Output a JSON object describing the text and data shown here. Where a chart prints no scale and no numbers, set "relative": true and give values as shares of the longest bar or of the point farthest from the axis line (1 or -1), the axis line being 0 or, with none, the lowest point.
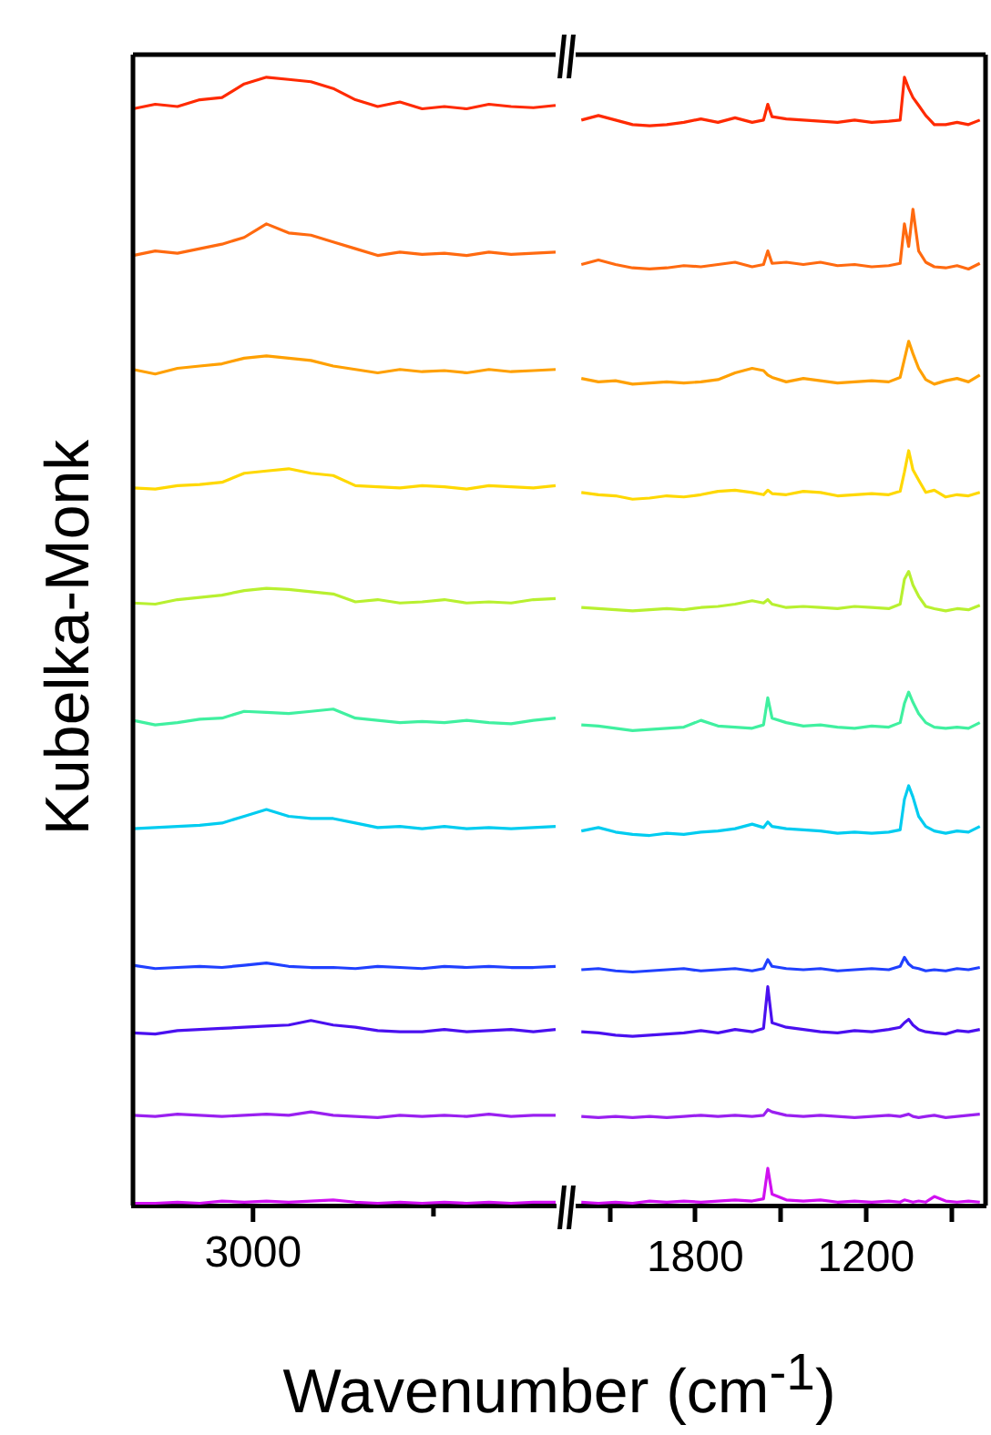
{
  "chart_data": [
    {
      "type": "line",
      "relative": true,
      "ylabel": "Kubelka-Monk",
      "tick_labels": false,
      "annotations": [
        "3000"
      ],
      "categories": [
        null,
        null,
        null,
        null,
        null,
        null,
        null,
        null,
        null,
        null,
        null,
        null,
        null,
        null,
        null,
        null,
        null,
        null,
        null,
        null
      ],
      "series": [
        {
          "color": "#ff2a00",
          "values": [
            0.972,
            0.976,
            0.974,
            0.98,
            0.982,
            0.994,
            1.0,
            0.998,
            0.996,
            0.99,
            0.98,
            0.974,
            0.978,
            0.972,
            0.974,
            0.972,
            0.976,
            0.974,
            0.973,
            0.975
          ]
        },
        {
          "color": "#ff6a10",
          "values": [
            0.842,
            0.846,
            0.844,
            0.848,
            0.852,
            0.858,
            0.87,
            0.862,
            0.86,
            0.854,
            0.848,
            0.842,
            0.845,
            0.843,
            0.844,
            0.842,
            0.845,
            0.843,
            0.844,
            0.845
          ]
        },
        {
          "color": "#ffa000",
          "values": [
            0.741,
            0.737,
            0.742,
            0.744,
            0.746,
            0.751,
            0.753,
            0.751,
            0.749,
            0.744,
            0.741,
            0.738,
            0.741,
            0.739,
            0.74,
            0.738,
            0.741,
            0.739,
            0.74,
            0.741
          ]
        },
        {
          "color": "#ffd800",
          "values": [
            0.636,
            0.635,
            0.638,
            0.639,
            0.641,
            0.649,
            0.651,
            0.653,
            0.649,
            0.647,
            0.638,
            0.637,
            0.636,
            0.638,
            0.637,
            0.635,
            0.638,
            0.637,
            0.636,
            0.638
          ]
        },
        {
          "color": "#b8f030",
          "values": [
            0.534,
            0.533,
            0.537,
            0.539,
            0.541,
            0.545,
            0.547,
            0.546,
            0.544,
            0.542,
            0.535,
            0.537,
            0.534,
            0.535,
            0.537,
            0.534,
            0.535,
            0.534,
            0.537,
            0.538
          ]
        },
        {
          "color": "#40f0a0",
          "values": [
            0.43,
            0.426,
            0.428,
            0.431,
            0.432,
            0.438,
            0.437,
            0.436,
            0.438,
            0.44,
            0.432,
            0.43,
            0.428,
            0.429,
            0.428,
            0.43,
            0.428,
            0.427,
            0.43,
            0.432
          ]
        },
        {
          "color": "#00ccf0",
          "values": [
            0.334,
            0.335,
            0.336,
            0.337,
            0.339,
            0.345,
            0.351,
            0.345,
            0.343,
            0.343,
            0.339,
            0.335,
            0.336,
            0.334,
            0.336,
            0.334,
            0.335,
            0.334,
            0.335,
            0.336
          ]
        },
        {
          "color": "#2040ff",
          "values": [
            0.213,
            0.21,
            0.211,
            0.212,
            0.211,
            0.213,
            0.215,
            0.212,
            0.211,
            0.211,
            0.21,
            0.212,
            0.211,
            0.21,
            0.212,
            0.211,
            0.212,
            0.211,
            0.211,
            0.212
          ]
        },
        {
          "color": "#4a10f0",
          "values": [
            0.153,
            0.152,
            0.155,
            0.156,
            0.157,
            0.158,
            0.159,
            0.16,
            0.164,
            0.16,
            0.158,
            0.155,
            0.154,
            0.154,
            0.156,
            0.154,
            0.155,
            0.156,
            0.154,
            0.156
          ]
        },
        {
          "color": "#9a20f0",
          "values": [
            0.08,
            0.079,
            0.081,
            0.08,
            0.079,
            0.08,
            0.081,
            0.08,
            0.083,
            0.08,
            0.079,
            0.078,
            0.08,
            0.079,
            0.08,
            0.079,
            0.081,
            0.079,
            0.08,
            0.08
          ]
        },
        {
          "color": "#d010f0",
          "values": [
            0.002,
            0.002,
            0.003,
            0.002,
            0.004,
            0.003,
            0.004,
            0.003,
            0.004,
            0.005,
            0.003,
            0.002,
            0.003,
            0.002,
            0.003,
            0.002,
            0.003,
            0.002,
            0.003,
            0.003
          ]
        }
      ]
    },
    {
      "type": "line",
      "relative": true,
      "xlabel": "Wavenumber (cm$^{-1}$)",
      "tick_labels": "x",
      "xlim": [
        2220,
        780
      ],
      "xticks": [
        {
          "value": 2100,
          "label": null
        },
        1800,
        {
          "value": 1500,
          "label": null
        },
        1200,
        {
          "value": 900,
          "label": null
        }
      ],
      "x": [
        2200,
        2140,
        2080,
        2020,
        1960,
        1900,
        1840,
        1780,
        1720,
        1660,
        1600,
        1560,
        1545,
        1530,
        1480,
        1420,
        1360,
        1300,
        1240,
        1180,
        1120,
        1080,
        1065,
        1050,
        1035,
        1015,
        990,
        960,
        920,
        880,
        840,
        800
      ],
      "series": [
        {
          "color": "#ff2a00",
          "values": [
            0.962,
            0.966,
            0.962,
            0.958,
            0.957,
            0.958,
            0.96,
            0.963,
            0.96,
            0.964,
            0.96,
            0.962,
            0.976,
            0.965,
            0.963,
            0.962,
            0.961,
            0.96,
            0.962,
            0.96,
            0.961,
            0.962,
            1.0,
            0.99,
            0.982,
            0.975,
            0.966,
            0.958,
            0.958,
            0.96,
            0.958,
            0.962
          ]
        },
        {
          "color": "#ff6a10",
          "values": [
            0.834,
            0.838,
            0.834,
            0.831,
            0.83,
            0.831,
            0.833,
            0.832,
            0.834,
            0.836,
            0.832,
            0.834,
            0.846,
            0.835,
            0.836,
            0.834,
            0.836,
            0.833,
            0.834,
            0.832,
            0.833,
            0.835,
            0.87,
            0.85,
            0.883,
            0.846,
            0.836,
            0.832,
            0.831,
            0.833,
            0.83,
            0.835
          ]
        },
        {
          "color": "#ffa000",
          "values": [
            0.733,
            0.73,
            0.731,
            0.728,
            0.729,
            0.73,
            0.729,
            0.73,
            0.732,
            0.738,
            0.742,
            0.74,
            0.736,
            0.734,
            0.73,
            0.733,
            0.731,
            0.729,
            0.73,
            0.731,
            0.73,
            0.734,
            0.75,
            0.766,
            0.755,
            0.742,
            0.732,
            0.728,
            0.731,
            0.733,
            0.73,
            0.736
          ]
        },
        {
          "color": "#ffd800",
          "values": [
            0.632,
            0.63,
            0.629,
            0.626,
            0.627,
            0.629,
            0.628,
            0.63,
            0.633,
            0.634,
            0.632,
            0.63,
            0.634,
            0.631,
            0.63,
            0.633,
            0.632,
            0.629,
            0.63,
            0.631,
            0.63,
            0.633,
            0.65,
            0.669,
            0.652,
            0.643,
            0.632,
            0.634,
            0.628,
            0.63,
            0.629,
            0.632
          ]
        },
        {
          "color": "#b8f030",
          "values": [
            0.53,
            0.529,
            0.528,
            0.527,
            0.528,
            0.529,
            0.528,
            0.53,
            0.531,
            0.533,
            0.536,
            0.534,
            0.537,
            0.533,
            0.53,
            0.531,
            0.53,
            0.529,
            0.531,
            0.53,
            0.529,
            0.533,
            0.555,
            0.562,
            0.55,
            0.54,
            0.531,
            0.529,
            0.527,
            0.529,
            0.528,
            0.532
          ]
        },
        {
          "color": "#40f0a0",
          "values": [
            0.426,
            0.425,
            0.423,
            0.421,
            0.422,
            0.423,
            0.424,
            0.43,
            0.425,
            0.424,
            0.423,
            0.426,
            0.45,
            0.432,
            0.428,
            0.425,
            0.426,
            0.424,
            0.423,
            0.425,
            0.424,
            0.428,
            0.445,
            0.455,
            0.446,
            0.436,
            0.428,
            0.424,
            0.423,
            0.424,
            0.423,
            0.428
          ]
        },
        {
          "color": "#00ccf0",
          "values": [
            0.332,
            0.335,
            0.331,
            0.329,
            0.328,
            0.33,
            0.329,
            0.331,
            0.332,
            0.334,
            0.338,
            0.335,
            0.34,
            0.336,
            0.334,
            0.333,
            0.332,
            0.33,
            0.331,
            0.33,
            0.331,
            0.333,
            0.36,
            0.372,
            0.362,
            0.345,
            0.336,
            0.332,
            0.33,
            0.332,
            0.331,
            0.336
          ]
        },
        {
          "color": "#2040ff",
          "values": [
            0.209,
            0.21,
            0.208,
            0.207,
            0.208,
            0.209,
            0.21,
            0.208,
            0.209,
            0.21,
            0.208,
            0.21,
            0.218,
            0.212,
            0.21,
            0.209,
            0.21,
            0.208,
            0.209,
            0.21,
            0.209,
            0.212,
            0.22,
            0.214,
            0.211,
            0.21,
            0.208,
            0.209,
            0.208,
            0.21,
            0.209,
            0.211
          ]
        },
        {
          "color": "#4a10f0",
          "values": [
            0.154,
            0.153,
            0.151,
            0.15,
            0.151,
            0.152,
            0.153,
            0.155,
            0.153,
            0.156,
            0.154,
            0.157,
            0.194,
            0.162,
            0.158,
            0.156,
            0.154,
            0.153,
            0.155,
            0.154,
            0.156,
            0.158,
            0.162,
            0.165,
            0.16,
            0.156,
            0.154,
            0.153,
            0.152,
            0.155,
            0.154,
            0.156
          ]
        },
        {
          "color": "#9a20f0",
          "values": [
            0.079,
            0.078,
            0.079,
            0.078,
            0.079,
            0.078,
            0.079,
            0.08,
            0.079,
            0.08,
            0.079,
            0.08,
            0.085,
            0.083,
            0.08,
            0.079,
            0.08,
            0.079,
            0.078,
            0.079,
            0.08,
            0.079,
            0.08,
            0.081,
            0.079,
            0.078,
            0.079,
            0.08,
            0.078,
            0.079,
            0.08,
            0.081
          ]
        },
        {
          "color": "#d010f0",
          "values": [
            0.003,
            0.002,
            0.003,
            0.002,
            0.004,
            0.003,
            0.004,
            0.003,
            0.004,
            0.005,
            0.004,
            0.006,
            0.033,
            0.01,
            0.005,
            0.004,
            0.005,
            0.003,
            0.004,
            0.003,
            0.004,
            0.003,
            0.005,
            0.004,
            0.003,
            0.004,
            0.003,
            0.008,
            0.004,
            0.003,
            0.004,
            0.003
          ]
        }
      ]
    }
  ]
}
